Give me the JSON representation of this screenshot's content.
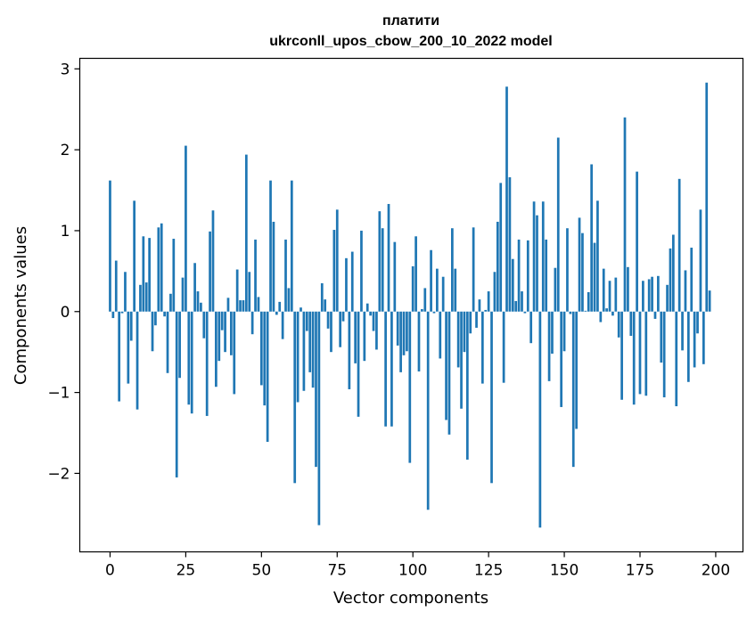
{
  "chart_data": {
    "type": "bar",
    "title": "платити",
    "subtitle": "ukrconll_upos_cbow_200_10_2022 model",
    "xlabel": "Vector components",
    "ylabel": "Components values",
    "xlim": [
      -10,
      209
    ],
    "ylim": [
      -2.97,
      3.13
    ],
    "xticks": [
      0,
      25,
      50,
      75,
      100,
      125,
      150,
      175,
      200
    ],
    "yticks": [
      -2,
      -1,
      0,
      1,
      2,
      3
    ],
    "ytick_labels": [
      "−2",
      "−1",
      "0",
      "1",
      "2",
      "3"
    ],
    "grid": false,
    "bar_color": "#1f77b4",
    "series": [
      {
        "values": [
          1.62,
          -0.08,
          0.63,
          -1.11,
          -0.02,
          0.49,
          -0.89,
          -0.36,
          1.37,
          -1.21,
          0.33,
          0.93,
          0.36,
          0.91,
          -0.49,
          -0.17,
          1.04,
          1.09,
          -0.06,
          -0.76,
          0.22,
          0.9,
          -2.05,
          -0.82,
          0.42,
          2.05,
          -1.15,
          -1.26,
          0.6,
          0.25,
          0.11,
          -0.33,
          -1.29,
          0.99,
          1.25,
          -0.93,
          -0.61,
          -0.23,
          -0.5,
          0.17,
          -0.54,
          -1.02,
          0.52,
          0.14,
          0.14,
          1.94,
          0.49,
          -0.28,
          0.89,
          0.18,
          -0.91,
          -1.16,
          -1.61,
          1.62,
          1.11,
          -0.04,
          0.12,
          -0.34,
          0.89,
          0.29,
          1.62,
          -2.12,
          -1.12,
          0.05,
          -0.98,
          -0.24,
          -0.75,
          -0.94,
          -1.92,
          -2.64,
          0.35,
          0.15,
          -0.21,
          -0.5,
          1.01,
          1.26,
          -0.44,
          -0.12,
          0.66,
          -0.96,
          0.74,
          -0.64,
          -1.3,
          1.0,
          -0.61,
          0.1,
          -0.05,
          -0.24,
          -0.47,
          1.24,
          1.03,
          -1.42,
          1.33,
          -1.42,
          0.86,
          -0.42,
          -0.75,
          -0.54,
          -0.49,
          -1.87,
          0.56,
          0.93,
          -0.74,
          0.03,
          0.29,
          -2.45,
          0.76,
          -0.02,
          0.53,
          -0.58,
          0.43,
          -1.34,
          -1.52,
          1.03,
          0.53,
          -0.69,
          -1.2,
          -0.5,
          -1.83,
          -0.27,
          1.04,
          -0.2,
          0.15,
          -0.89,
          0.02,
          0.25,
          -2.12,
          0.49,
          1.11,
          1.59,
          -0.88,
          2.78,
          1.66,
          0.65,
          0.13,
          0.89,
          0.25,
          -0.02,
          0.88,
          -0.39,
          1.36,
          1.19,
          -2.67,
          1.36,
          0.89,
          -0.86,
          -0.52,
          0.54,
          2.15,
          -1.18,
          -0.49,
          1.03,
          -0.03,
          -1.92,
          -1.45,
          1.16,
          0.97,
          0.01,
          0.24,
          1.82,
          0.85,
          1.37,
          -0.13,
          0.53,
          0.04,
          0.38,
          -0.05,
          0.42,
          -0.32,
          -1.09,
          2.4,
          0.55,
          -0.3,
          -1.15,
          1.73,
          -1.02,
          0.38,
          -1.04,
          0.4,
          0.43,
          -0.09,
          0.44,
          -0.63,
          -1.06,
          0.33,
          0.78,
          0.95,
          -1.17,
          1.64,
          -0.48,
          0.51,
          -0.87,
          0.79,
          -0.69,
          -0.27,
          1.26,
          -0.65,
          2.83,
          0.26
        ]
      }
    ]
  }
}
